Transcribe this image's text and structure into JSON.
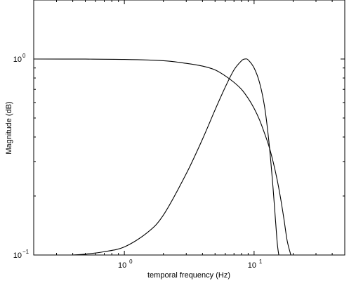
{
  "chart_data": {
    "type": "line",
    "title": "",
    "xlabel": "temporal frequency (Hz)",
    "ylabel": "Magnitude (dB)",
    "x_scale": "log",
    "y_scale": "log",
    "xlim": [
      0.2,
      50
    ],
    "ylim": [
      0.1,
      2
    ],
    "grid": false,
    "x_ticks": [
      {
        "value": 1,
        "base": "10",
        "exp": "0"
      },
      {
        "value": 10,
        "base": "10",
        "exp": "1"
      }
    ],
    "y_ticks": [
      {
        "value": 0.1,
        "base": "10",
        "exp": "−1"
      },
      {
        "value": 1,
        "base": "10",
        "exp": "0"
      }
    ],
    "series": [
      {
        "x": [
          0.2,
          0.5,
          1.0,
          2.0,
          3.0,
          4.0,
          5.0,
          6.0,
          7.0,
          8.0,
          9.0,
          10.0,
          11.0,
          12.0,
          13.0,
          14.0,
          15.0,
          16.0,
          17.0,
          18.0,
          19.2
        ],
        "y": [
          1.0,
          0.999,
          0.995,
          0.98,
          0.95,
          0.92,
          0.88,
          0.82,
          0.76,
          0.7,
          0.63,
          0.56,
          0.49,
          0.42,
          0.36,
          0.3,
          0.245,
          0.195,
          0.152,
          0.118,
          0.1
        ]
      },
      {
        "x": [
          0.4,
          0.5,
          0.7,
          1.0,
          1.5,
          2.0,
          3.0,
          4.0,
          5.0,
          6.0,
          7.0,
          8.0,
          8.5,
          9.0,
          10.0,
          11.0,
          12.0,
          13.0,
          14.0,
          15.0,
          15.5
        ],
        "y": [
          0.1,
          0.101,
          0.104,
          0.11,
          0.13,
          0.16,
          0.26,
          0.39,
          0.55,
          0.72,
          0.88,
          0.98,
          1.0,
          0.99,
          0.9,
          0.76,
          0.58,
          0.38,
          0.22,
          0.12,
          0.1
        ]
      }
    ]
  }
}
